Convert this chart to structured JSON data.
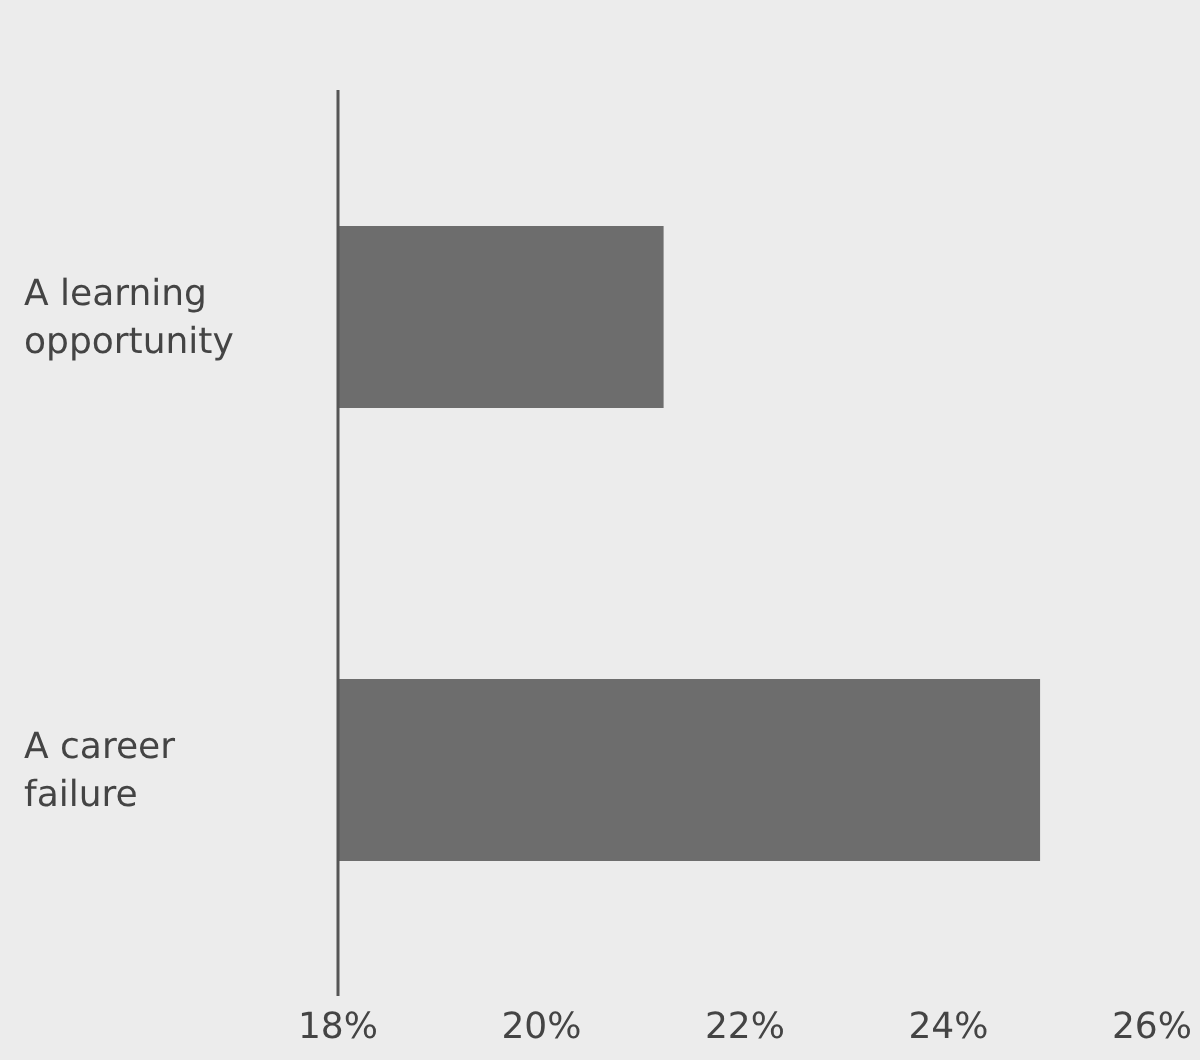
{
  "chart_data": {
    "type": "bar",
    "orientation": "horizontal",
    "categories": [
      "A learning opportunity",
      "A career failure"
    ],
    "values": [
      21.2,
      24.9
    ],
    "color": "#6d6d6d",
    "xlim": [
      18,
      26
    ],
    "xticks": [
      {
        "value": 18,
        "label": "18%"
      },
      {
        "value": 20,
        "label": "20%"
      },
      {
        "value": 22,
        "label": "22%"
      },
      {
        "value": 24,
        "label": "24%"
      },
      {
        "value": 26,
        "label": "26%"
      }
    ],
    "grid": false,
    "legend": false
  }
}
